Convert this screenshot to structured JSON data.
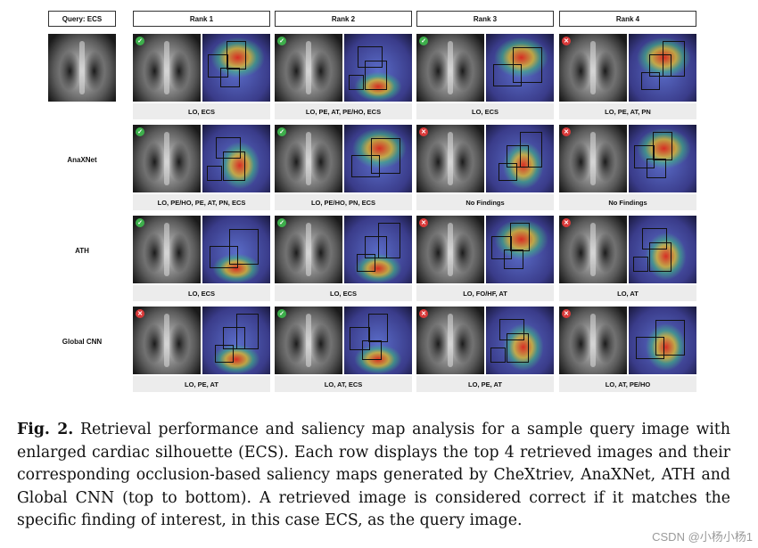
{
  "query_label": "Query: ECS",
  "ranks": [
    "Rank 1",
    "Rank 2",
    "Rank 3",
    "Rank 4"
  ],
  "row_labels": [
    "",
    "AnaXNet",
    "ATH",
    "Global CNN"
  ],
  "findings": [
    [
      "LO, ECS",
      "LO, PE, AT, PE/HO, ECS",
      "LO, ECS",
      "LO, PE, AT, PN"
    ],
    [
      "LO, PE/HO, PE, AT, PN, ECS",
      "LO, PE/HO, PN, ECS",
      "No Findings",
      "No Findings"
    ],
    [
      "LO, ECS",
      "LO, ECS",
      "LO, FO/HF, AT",
      "LO, AT"
    ],
    [
      "LO, PE, AT",
      "LO, AT, ECS",
      "LO, PE, AT",
      "LO, AT, PE/HO"
    ]
  ],
  "correct": [
    [
      true,
      true,
      true,
      false
    ],
    [
      true,
      true,
      false,
      false
    ],
    [
      true,
      true,
      false,
      false
    ],
    [
      false,
      true,
      false,
      false
    ]
  ],
  "colors": {
    "correct": "#3dae4b",
    "incorrect": "#d93a3a"
  },
  "icons": {
    "correct": "check-icon",
    "incorrect": "cross-icon"
  },
  "caption": {
    "fig_label": "Fig. 2.",
    "text": " Retrieval performance and saliency map analysis for a sample query image with enlarged cardiac silhouette (ECS). Each row displays the top 4 retrieved images and their corresponding occlusion-based saliency maps generated by CheXtriev, AnaXNet, ATH and Global CNN (top to bottom). A retrieved image is considered correct if it matches the specific finding of interest, in this case ECS, as the query image."
  },
  "watermark": "CSDN @小杨小杨1"
}
